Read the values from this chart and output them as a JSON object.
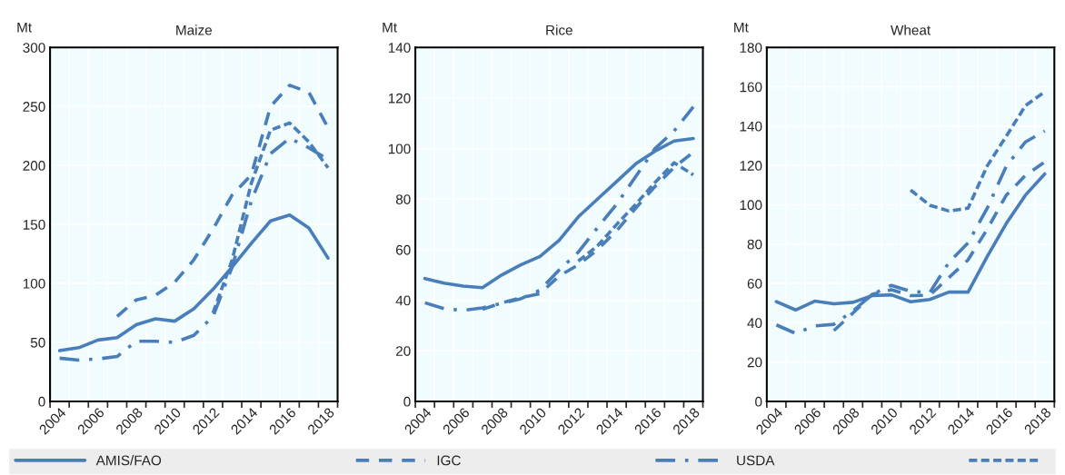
{
  "chart_data": [
    {
      "type": "line",
      "title": "Maize",
      "ylabel": "Mt",
      "categories": [
        "2004",
        null,
        "2006",
        null,
        "2008",
        null,
        "2010",
        null,
        "2012",
        null,
        "2014",
        null,
        "2016",
        null,
        "2018"
      ],
      "ylim": [
        0,
        300
      ],
      "yticks": [
        0,
        50,
        100,
        150,
        200,
        250,
        300
      ],
      "grid": true,
      "legend": "bottom",
      "series": [
        {
          "name": "AMIS/FAO",
          "color": "#4a7ebb",
          "line_style": "solid",
          "values": [
            43,
            45.5,
            52,
            54,
            65,
            70,
            68,
            78.5,
            95,
            114,
            134,
            153,
            158,
            147,
            121.5
          ]
        },
        {
          "name": "IGC",
          "color": "#4a7ebb",
          "line_style": "dashed",
          "values": [
            null,
            null,
            null,
            72,
            86,
            90,
            101,
            120,
            146,
            175,
            192,
            250,
            268,
            262,
            232
          ]
        },
        {
          "name": "USDA",
          "color": "#4a7ebb",
          "line_style": "dashdot",
          "values": [
            36.6,
            35,
            36,
            38,
            51,
            51,
            50,
            56,
            72,
            114,
            170,
            210,
            223,
            215,
            205
          ]
        },
        {
          "color": "#4a7ebb",
          "line_style": "densely dashed",
          "values": [
            null,
            null,
            null,
            null,
            null,
            null,
            null,
            null,
            75,
            120,
            185,
            230,
            236,
            220,
            198
          ]
        }
      ]
    },
    {
      "type": "line",
      "title": "Rice",
      "ylabel": "Mt",
      "categories": [
        "2004",
        null,
        "2006",
        null,
        "2008",
        null,
        "2010",
        null,
        "2012",
        null,
        "2014",
        null,
        "2016",
        null,
        "2018"
      ],
      "ylim": [
        0,
        140
      ],
      "yticks": [
        0,
        20,
        40,
        60,
        80,
        100,
        120,
        140
      ],
      "grid": true,
      "series": [
        {
          "name": "AMIS/FAO",
          "color": "#4a7ebb",
          "line_style": "solid",
          "values": [
            48.6,
            46.8,
            45.6,
            45,
            50,
            54,
            57.3,
            63.7,
            73,
            80,
            87,
            94,
            99,
            103,
            104
          ]
        },
        {
          "name": "IGC",
          "color": "#4a7ebb",
          "line_style": "dashed",
          "values": [
            null,
            null,
            null,
            36.4,
            39,
            41,
            42.6,
            49.6,
            54,
            60,
            67.5,
            76.5,
            85,
            92.6,
            98.6
          ]
        },
        {
          "name": "USDA",
          "color": "#4a7ebb",
          "line_style": "dashdot",
          "values": [
            39,
            36.7,
            36,
            37,
            38.8,
            40.6,
            44,
            52,
            59,
            68.7,
            78,
            89,
            100,
            107,
            116.5
          ]
        },
        {
          "color": "#4a7ebb",
          "line_style": "densely dashed",
          "values": [
            null,
            null,
            null,
            null,
            null,
            null,
            null,
            null,
            55.5,
            61.5,
            70,
            78,
            86.6,
            94.4,
            89.6
          ]
        }
      ]
    },
    {
      "type": "line",
      "title": "Wheat",
      "ylabel": "Mt",
      "categories": [
        "2004",
        null,
        "2006",
        null,
        "2008",
        null,
        "2010",
        null,
        "2012",
        null,
        "2014",
        null,
        "2016",
        null,
        "2018"
      ],
      "ylim": [
        0,
        180
      ],
      "yticks": [
        0,
        20,
        40,
        60,
        80,
        100,
        120,
        140,
        160,
        180
      ],
      "grid": true,
      "series": [
        {
          "name": "AMIS/FAO",
          "color": "#4a7ebb",
          "line_style": "solid",
          "values": [
            50.7,
            46.5,
            51,
            49.6,
            50.4,
            53.8,
            54.2,
            50.7,
            51.8,
            55.6,
            55.6,
            73.7,
            90.6,
            105,
            115.7
          ]
        },
        {
          "name": "IGC",
          "color": "#4a7ebb",
          "line_style": "dashed",
          "values": [
            null,
            null,
            null,
            36,
            45,
            54.5,
            56.8,
            53.8,
            54,
            63,
            72,
            87.6,
            105,
            115,
            121.8
          ]
        },
        {
          "name": "USDA",
          "color": "#4a7ebb",
          "line_style": "dashdot",
          "values": [
            38.9,
            34.6,
            38.4,
            39.2,
            46,
            54.5,
            59,
            56,
            55.3,
            70.7,
            80.6,
            98.3,
            119.8,
            132,
            137.5
          ]
        },
        {
          "color": "#4a7ebb",
          "line_style": "densely dashed",
          "values": [
            null,
            null,
            null,
            null,
            null,
            null,
            null,
            107.5,
            99.8,
            96.8,
            98.3,
            119.8,
            135,
            150.5,
            157.5
          ]
        }
      ]
    }
  ]
}
